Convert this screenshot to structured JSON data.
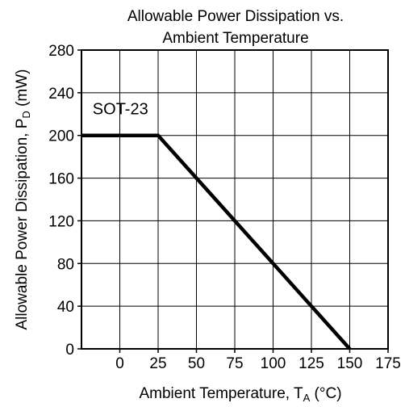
{
  "chart_data": {
    "type": "line",
    "title": [
      "Allowable Power Dissipation vs.",
      "Ambient Temperature"
    ],
    "xlabel": {
      "main": "Ambient Temperature, T",
      "sub": "A",
      "unit": " (°C)"
    },
    "ylabel": {
      "main": "Allowable Power Dissipation, P",
      "sub": "D",
      "unit": " (mW)"
    },
    "x_ticks": [
      0,
      25,
      50,
      75,
      100,
      125,
      150,
      175
    ],
    "x_tick_labels": [
      "0",
      "25",
      "50",
      "75",
      "100",
      "125",
      "150",
      "175"
    ],
    "y_ticks": [
      0,
      40,
      80,
      120,
      160,
      200,
      240,
      280
    ],
    "y_tick_labels": [
      "0",
      "40",
      "80",
      "120",
      "160",
      "200",
      "240",
      "280"
    ],
    "xlim": [
      -25,
      175
    ],
    "ylim": [
      0,
      280
    ],
    "grid": true,
    "series": [
      {
        "name": "SOT-23",
        "x": [
          -25,
          25,
          150
        ],
        "y": [
          200,
          200,
          0
        ]
      }
    ],
    "annotations": [
      {
        "text": "SOT-23",
        "x": -23,
        "y": 225
      }
    ]
  }
}
